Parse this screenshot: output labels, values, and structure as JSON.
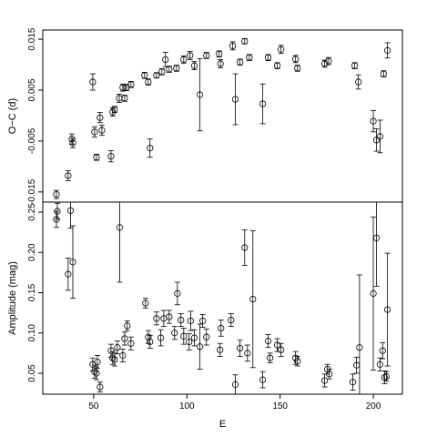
{
  "chart_data": [
    {
      "type": "scatter",
      "y_label": "O−C (d)",
      "x": [
        30,
        36.3,
        38.3,
        38.8,
        49.5,
        50.5,
        51.5,
        53.4,
        54.4,
        59.3,
        60.2,
        61.2,
        63.7,
        65.6,
        66.6,
        67.6,
        70,
        77.3,
        79.3,
        80.2,
        83.7,
        86.6,
        88.5,
        90.5,
        94.4,
        98.3,
        101.7,
        104,
        107,
        110.5,
        117.3,
        118,
        124.6,
        126,
        128.5,
        131,
        133.5,
        140.7,
        143.6,
        148.5,
        150.5,
        158.3,
        159.3,
        173.9,
        176,
        190,
        192,
        200,
        201.7,
        203.6,
        205.5,
        207.6
      ],
      "values": [
        -0.0155,
        -0.0118,
        -0.0046,
        -0.0054,
        0.0066,
        -0.0032,
        -0.0082,
        -0.0004,
        -0.0029,
        -0.008,
        0.0007,
        0.0012,
        0.0034,
        0.0055,
        0.0034,
        0.0055,
        0.0061,
        0.0079,
        0.0066,
        -0.0064,
        0.0079,
        0.0086,
        0.011,
        0.0091,
        0.0093,
        0.011,
        0.0118,
        0.0098,
        0.0041,
        0.0118,
        0.0121,
        0.0102,
        0.0137,
        0.0032,
        0.0105,
        0.0146,
        0.0114,
        0.0023,
        0.0114,
        0.0098,
        0.013,
        0.0111,
        0.0093,
        0.0102,
        0.0107,
        0.0098,
        0.0066,
        -0.0011,
        -0.0048,
        -0.0041,
        0.0082,
        0.0128
      ],
      "errors": [
        0.0008,
        0.001,
        0.001,
        0.0009,
        0.0016,
        0.001,
        0.0006,
        0.001,
        0.001,
        0.0011,
        0.0008,
        0.0006,
        0.0008,
        0.0007,
        0.0006,
        0.0006,
        0.0006,
        0.0006,
        0.0006,
        0.0018,
        0.0005,
        0.0006,
        0.0014,
        0.0006,
        0.0006,
        0.0007,
        0.0008,
        0.0008,
        0.0071,
        0.0006,
        0.0006,
        0.0008,
        0.0008,
        0.005,
        0.0006,
        0.0005,
        0.0006,
        0.0039,
        0.0006,
        0.0006,
        0.0008,
        0.0007,
        0.0006,
        0.0007,
        0.0007,
        0.0006,
        0.0014,
        0.0021,
        0.0022,
        0.0032,
        0.0006,
        0.0015
      ],
      "xlim": [
        22.7,
        215.6
      ],
      "ylim": [
        -0.017,
        0.0168
      ],
      "yticks": [
        -0.015,
        -0.005,
        0.005,
        0.015
      ]
    },
    {
      "type": "scatter",
      "y_label": "Amplitude (mag)",
      "x_label": "E",
      "x": [
        30,
        30.5,
        36.3,
        37.6,
        38.8,
        49.5,
        50.5,
        51.5,
        52,
        53.4,
        59.3,
        60.2,
        61.2,
        62.7,
        64,
        65.6,
        66.6,
        68,
        70,
        77.8,
        79.3,
        80.2,
        83.7,
        86,
        87.6,
        90.5,
        93.4,
        94.9,
        96.8,
        98.3,
        101.2,
        102,
        104,
        107,
        108.5,
        110.5,
        117.8,
        118.3,
        123.7,
        126,
        128.5,
        131,
        132.5,
        135.4,
        140.7,
        143.6,
        144.6,
        148.5,
        150.5,
        158.3,
        159.3,
        173.9,
        175.4,
        176.4,
        189,
        191,
        192.6,
        200,
        201.7,
        203.6,
        205,
        206,
        207,
        207.6
      ],
      "values": [
        0.241,
        0.251,
        0.173,
        0.252,
        0.188,
        0.061,
        0.052,
        0.05,
        0.064,
        0.033,
        0.078,
        0.069,
        0.067,
        0.082,
        0.231,
        0.072,
        0.093,
        0.109,
        0.087,
        0.137,
        0.095,
        0.089,
        0.118,
        0.094,
        0.118,
        0.12,
        0.1,
        0.149,
        0.116,
        0.096,
        0.089,
        0.115,
        0.094,
        0.083,
        0.115,
        0.095,
        0.079,
        0.106,
        0.116,
        0.036,
        0.081,
        0.206,
        0.075,
        0.142,
        0.042,
        0.09,
        0.069,
        0.085,
        0.079,
        0.069,
        0.065,
        0.041,
        0.055,
        0.049,
        0.039,
        0.06,
        0.082,
        0.149,
        0.218,
        0.061,
        0.078,
        0.045,
        0.046,
        0.129
      ],
      "errors": [
        0.01,
        0.01,
        0.02,
        0.022,
        0.045,
        0.008,
        0.008,
        0.008,
        0.008,
        0.006,
        0.008,
        0.008,
        0.008,
        0.008,
        0.068,
        0.008,
        0.008,
        0.006,
        0.008,
        0.006,
        0.008,
        0.008,
        0.008,
        0.01,
        0.01,
        0.008,
        0.008,
        0.014,
        0.008,
        0.01,
        0.01,
        0.012,
        0.01,
        0.028,
        0.008,
        0.01,
        0.008,
        0.01,
        0.008,
        0.012,
        0.01,
        0.022,
        0.01,
        0.085,
        0.01,
        0.008,
        0.006,
        0.008,
        0.008,
        0.008,
        0.006,
        0.008,
        0.006,
        0.006,
        0.01,
        0.01,
        0.09,
        0.095,
        0.06,
        0.008,
        0.01,
        0.008,
        0.006,
        0.07
      ],
      "xlim": [
        22.7,
        215.6
      ],
      "ylim": [
        0.024,
        0.2624
      ],
      "yticks": [
        0.05,
        {
          "value": 0.1,
          "label": "0.10"
        },
        0.15,
        {
          "value": 0.2,
          "label": "0.20"
        },
        0.25
      ],
      "xticks": [
        50,
        100,
        150,
        200
      ]
    }
  ]
}
